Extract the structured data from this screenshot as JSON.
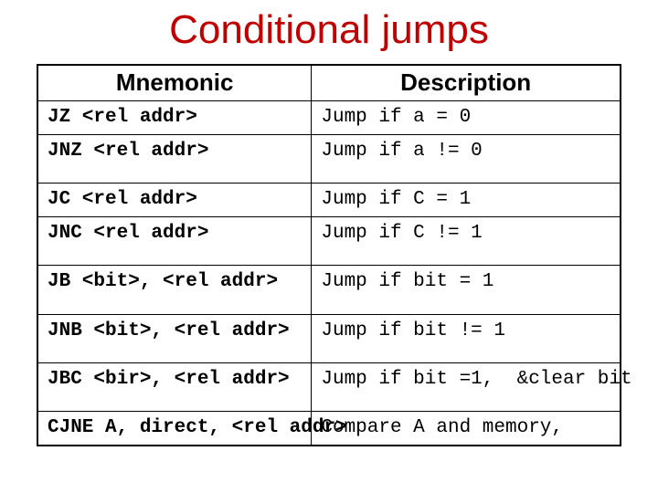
{
  "title": "Conditional jumps",
  "title_color": "#c00000",
  "background_color": "#ffffff",
  "border_color": "#000000",
  "columns": [
    {
      "label": "Mnemonic",
      "width_pct": 47,
      "align": "center",
      "header_fontsize": 26
    },
    {
      "label": "Description",
      "width_pct": 53,
      "align": "center",
      "header_fontsize": 26
    }
  ],
  "header_font": "Comic Sans MS",
  "cell_font": "Courier New",
  "cell_fontsize": 21,
  "rows": [
    {
      "mnemonic": "JZ <rel addr>",
      "description": "Jump if a = 0",
      "tall": false
    },
    {
      "mnemonic": "JNZ <rel addr>",
      "description": "Jump if a != 0",
      "tall": true
    },
    {
      "mnemonic": "JC <rel addr>",
      "description": "Jump if C = 1",
      "tall": false
    },
    {
      "mnemonic": "JNC <rel addr>",
      "description": "Jump if C != 1",
      "tall": true
    },
    {
      "mnemonic": "JB <bit>, <rel addr>",
      "description": "Jump if bit = 1",
      "tall": true
    },
    {
      "mnemonic": "JNB <bit>, <rel addr>",
      "description": "Jump if bit != 1",
      "tall": true
    },
    {
      "mnemonic": "JBC <bir>, <rel addr>",
      "description": "Jump if bit =1,  &clear bit",
      "tall": true
    },
    {
      "mnemonic": "CJNE A, direct, <rel addr>",
      "description": "Compare A and memory,",
      "tall": false
    }
  ]
}
